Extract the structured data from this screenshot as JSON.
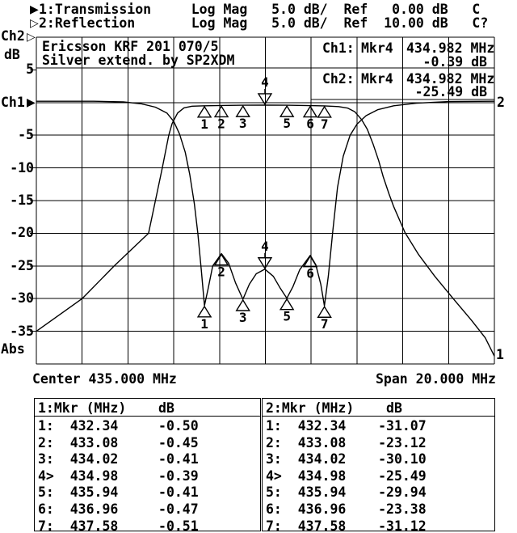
{
  "header": {
    "trace1_icon": "▶",
    "trace2_icon": "▷",
    "line1": "1:Transmission     Log Mag   5.0 dB/  Ref   0.00 dB   C",
    "line2": "2:Reflection       Log Mag   5.0 dB/  Ref  10.00 dB   C?"
  },
  "axis_labels": {
    "ch2": "Ch2",
    "ch2_icon": "▷",
    "db_unit": "dB",
    "ch1": "Ch1",
    "ch1_icon": "▶",
    "abs": "Abs",
    "center": "Center 435.000 MHz",
    "span": "Span 20.000 MHz",
    "trace2_end": "2",
    "trace1_end": "1"
  },
  "info_panel": {
    "title_line1": "Ericsson KRF 201 070/5",
    "title_line2": "Silver extend. by SP2XDM",
    "ch1": {
      "label": "Ch1:",
      "marker": "Mkr4",
      "freq": "434.982 MHz",
      "value": "-0.39 dB"
    },
    "ch2": {
      "label": "Ch2:",
      "marker": "Mkr4",
      "freq": "434.982 MHz",
      "value": "-25.49 dB"
    }
  },
  "chart_data": {
    "type": "line",
    "title": "Ericsson KRF 201 070/5 bandpass filter response",
    "x_axis": {
      "center_mhz": 435.0,
      "span_mhz": 20.0,
      "min_mhz": 425.0,
      "max_mhz": 445.0,
      "divisions": 10
    },
    "y_axis": {
      "db_per_div": 5.0,
      "ch1_ref_db": 0.0,
      "ch2_ref_db": 10.0,
      "top_db": 10,
      "bottom_db": -40,
      "tick_labels": [
        {
          "db": 5,
          "text": "5"
        },
        {
          "db": -5,
          "text": "-5"
        },
        {
          "db": -10,
          "text": "-10"
        },
        {
          "db": -15,
          "text": "-15"
        },
        {
          "db": -20,
          "text": "-20"
        },
        {
          "db": -25,
          "text": "-25"
        },
        {
          "db": -30,
          "text": "-30"
        },
        {
          "db": -35,
          "text": "-35"
        }
      ]
    },
    "series": [
      {
        "name": "Transmission",
        "channel": "Ch1",
        "points": [
          [
            425,
            -35
          ],
          [
            427,
            -30
          ],
          [
            428.4,
            -25
          ],
          [
            429.9,
            -20
          ],
          [
            430.2,
            -15
          ],
          [
            430.5,
            -10
          ],
          [
            430.78,
            -5
          ],
          [
            430.93,
            -3.2
          ],
          [
            431.17,
            -1.6
          ],
          [
            431.45,
            -0.8
          ],
          [
            431.8,
            -0.56
          ],
          [
            432.34,
            -0.5
          ],
          [
            433.08,
            -0.45
          ],
          [
            434.02,
            -0.41
          ],
          [
            434.98,
            -0.39
          ],
          [
            435.94,
            -0.41
          ],
          [
            436.96,
            -0.47
          ],
          [
            437.58,
            -0.51
          ],
          [
            438.2,
            -0.62
          ],
          [
            438.6,
            -0.85
          ],
          [
            438.9,
            -1.4
          ],
          [
            439.2,
            -2.6
          ],
          [
            439.45,
            -4.1
          ],
          [
            439.7,
            -6.3
          ],
          [
            439.95,
            -8.9
          ],
          [
            440.15,
            -11.4
          ],
          [
            440.4,
            -14
          ],
          [
            440.6,
            -15.9
          ],
          [
            441.1,
            -19.9
          ],
          [
            441.7,
            -23.3
          ],
          [
            442.4,
            -26.6
          ],
          [
            443.2,
            -30
          ],
          [
            444,
            -33.3
          ],
          [
            444.6,
            -36
          ],
          [
            445,
            -38.8
          ]
        ]
      },
      {
        "name": "Reflection",
        "channel": "Ch2",
        "points": [
          [
            425,
            0.2
          ],
          [
            427.5,
            0.2
          ],
          [
            428.8,
            0.1
          ],
          [
            429.6,
            -0.2
          ],
          [
            430.2,
            -0.7
          ],
          [
            430.7,
            -1.6
          ],
          [
            431.0,
            -2.9
          ],
          [
            431.25,
            -4.8
          ],
          [
            431.5,
            -7.6
          ],
          [
            431.7,
            -11
          ],
          [
            431.9,
            -15.5
          ],
          [
            432.05,
            -20
          ],
          [
            432.2,
            -25.5
          ],
          [
            432.34,
            -31.07
          ],
          [
            432.5,
            -28.5
          ],
          [
            432.7,
            -25
          ],
          [
            433.08,
            -23.12
          ],
          [
            433.4,
            -24.6
          ],
          [
            433.7,
            -27.6
          ],
          [
            434.02,
            -30.1
          ],
          [
            434.3,
            -27.8
          ],
          [
            434.6,
            -26.2
          ],
          [
            434.98,
            -25.49
          ],
          [
            435.35,
            -26.6
          ],
          [
            435.65,
            -28.4
          ],
          [
            435.94,
            -29.94
          ],
          [
            436.2,
            -28.2
          ],
          [
            436.5,
            -25.6
          ],
          [
            436.96,
            -23.38
          ],
          [
            437.2,
            -24.8
          ],
          [
            437.42,
            -27.8
          ],
          [
            437.58,
            -31.12
          ],
          [
            437.75,
            -26.5
          ],
          [
            437.95,
            -19.5
          ],
          [
            438.15,
            -13
          ],
          [
            438.4,
            -8.2
          ],
          [
            438.7,
            -5
          ],
          [
            439,
            -3.3
          ],
          [
            439.4,
            -2
          ],
          [
            439.9,
            -1.1
          ],
          [
            440.6,
            -0.5
          ],
          [
            441.6,
            -0.1
          ],
          [
            443,
            0.15
          ],
          [
            445,
            0.2
          ]
        ]
      }
    ],
    "markers": {
      "active": 4,
      "list": [
        {
          "n": 1,
          "freq_mhz": 432.34,
          "ch1_db": -0.5,
          "ch2_db": -31.07
        },
        {
          "n": 2,
          "freq_mhz": 433.08,
          "ch1_db": -0.45,
          "ch2_db": -23.12
        },
        {
          "n": 3,
          "freq_mhz": 434.02,
          "ch1_db": -0.41,
          "ch2_db": -30.1
        },
        {
          "n": 4,
          "freq_mhz": 434.98,
          "ch1_db": -0.39,
          "ch2_db": -25.49
        },
        {
          "n": 5,
          "freq_mhz": 435.94,
          "ch1_db": -0.41,
          "ch2_db": -29.94
        },
        {
          "n": 6,
          "freq_mhz": 436.96,
          "ch1_db": -0.47,
          "ch2_db": -23.38
        },
        {
          "n": 7,
          "freq_mhz": 437.58,
          "ch1_db": -0.51,
          "ch2_db": -31.12
        }
      ]
    }
  },
  "tables": [
    {
      "col1": "1:Mkr (MHz)",
      "col2": "dB",
      "rows": [
        [
          "1:",
          "432.34",
          "-0.50"
        ],
        [
          "2:",
          "433.08",
          "-0.45"
        ],
        [
          "3:",
          "434.02",
          "-0.41"
        ],
        [
          "4>",
          "434.98",
          "-0.39"
        ],
        [
          "5:",
          "435.94",
          "-0.41"
        ],
        [
          "6:",
          "436.96",
          "-0.47"
        ],
        [
          "7:",
          "437.58",
          "-0.51"
        ]
      ]
    },
    {
      "col1": "2:Mkr (MHz)",
      "col2": "dB",
      "rows": [
        [
          "1:",
          "432.34",
          "-31.07"
        ],
        [
          "2:",
          "433.08",
          "-23.12"
        ],
        [
          "3:",
          "434.02",
          "-30.10"
        ],
        [
          "4>",
          "434.98",
          "-25.49"
        ],
        [
          "5:",
          "435.94",
          "-29.94"
        ],
        [
          "6:",
          "436.96",
          "-23.38"
        ],
        [
          "7:",
          "437.58",
          "-31.12"
        ]
      ]
    }
  ]
}
